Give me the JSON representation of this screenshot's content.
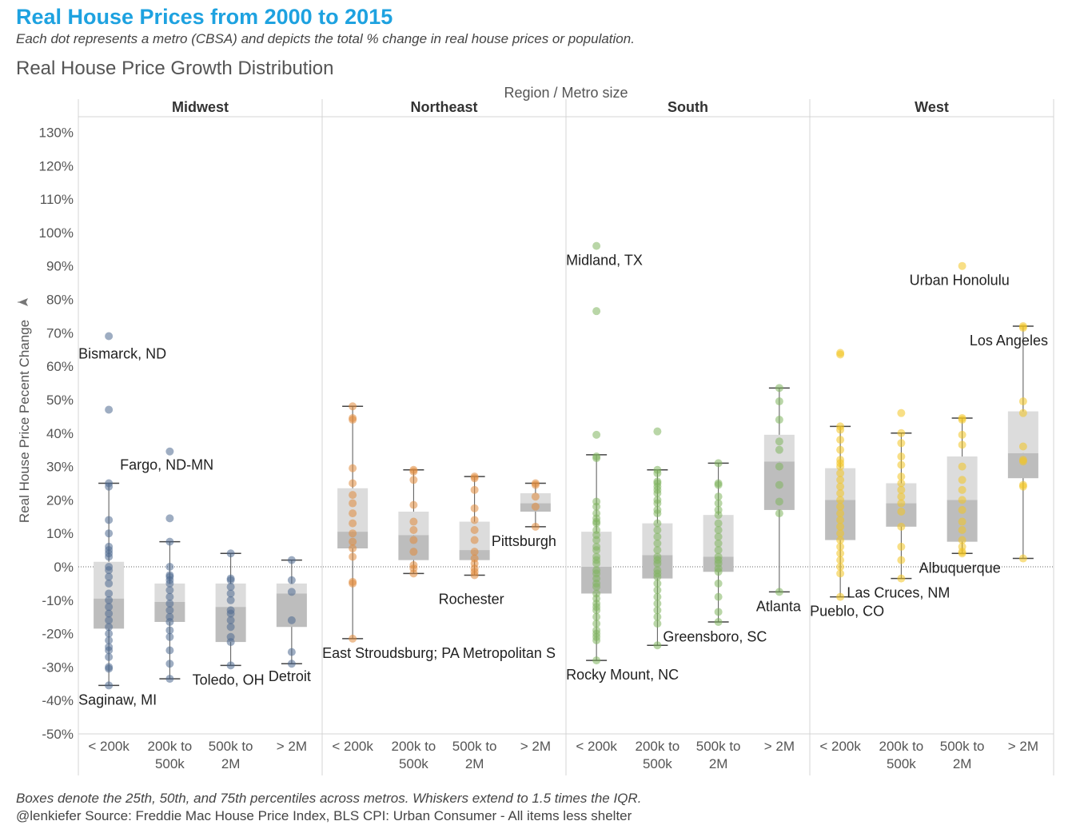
{
  "title": "Real House Prices from 2000 to 2015",
  "subtitle": "Each dot represents a metro (CBSA) and depicts the total % change in real house prices or population.",
  "sheet_title": "Real House Price Growth Distribution",
  "footer_note": "Boxes denote the 25th, 50th, and 75th percentiles across metros. Whiskers extend to 1.5 times the IQR.",
  "footer_source": "@lenkiefer Source: Freddie Mac House Price Index, BLS CPI: Urban Consumer - All items less shelter",
  "chart_data": {
    "type": "boxplot-with-points",
    "column_header": "Region  /  Metro size",
    "ylabel": "Real House Price Pecent Change",
    "ylim": [
      -52,
      133
    ],
    "yticks": [
      -50,
      -40,
      -30,
      -20,
      -10,
      0,
      10,
      20,
      30,
      40,
      50,
      60,
      70,
      80,
      90,
      100,
      110,
      120,
      130
    ],
    "y_tick_format": "{v}%",
    "reference_line": 0,
    "box_colors": {
      "q1_to_median": "#bdbdbd",
      "median_to_q3": "#dcdcdc"
    },
    "size_categories": [
      {
        "key": "lt200",
        "lines": [
          "< 200k"
        ]
      },
      {
        "key": "200to500",
        "lines": [
          "200k to",
          "500k"
        ]
      },
      {
        "key": "500to2m",
        "lines": [
          "500k to",
          "2M"
        ]
      },
      {
        "key": "gt2m",
        "lines": [
          "> 2M"
        ]
      }
    ],
    "regions": [
      {
        "name": "Midwest",
        "color": "#4e6a8f",
        "groups": [
          {
            "whisker_low": -35.5,
            "q1": -18.5,
            "median": -9.5,
            "q3": 1.5,
            "whisker_high": 25,
            "points": [
              69,
              47,
              25,
              24,
              14,
              10,
              6,
              5,
              4,
              3,
              0,
              -1,
              -3,
              -5,
              -8,
              -10,
              -12,
              -14,
              -16,
              -18,
              -20,
              -22,
              -24,
              -25,
              -27,
              -30,
              -30.5,
              -35.5
            ]
          },
          {
            "whisker_low": -33.5,
            "q1": -16.5,
            "median": -10.5,
            "q3": -5,
            "whisker_high": 7.5,
            "points": [
              34.5,
              14.5,
              7.5,
              0,
              -2.5,
              -3,
              -4,
              -5,
              -7,
              -9,
              -11,
              -13,
              -15,
              -16.5,
              -19,
              -21,
              -25,
              -29,
              -33.5
            ]
          },
          {
            "whisker_low": -29.5,
            "q1": -22.5,
            "median": -12,
            "q3": -5,
            "whisker_high": 4,
            "points": [
              4,
              -3.5,
              -4,
              -6,
              -8,
              -10,
              -13,
              -14,
              -16,
              -18,
              -21,
              -22.5,
              -29.5
            ]
          },
          {
            "whisker_low": -29,
            "q1": -18,
            "median": -8,
            "q3": -5,
            "whisker_high": 2,
            "points": [
              2,
              -4,
              -7.5,
              -16,
              -25.5,
              -29
            ]
          }
        ]
      },
      {
        "name": "Northeast",
        "color": "#e08a3c",
        "groups": [
          {
            "whisker_low": -21.5,
            "q1": 5.5,
            "median": 10.5,
            "q3": 23.5,
            "whisker_high": 48,
            "points": [
              48,
              44.5,
              44,
              29.5,
              25,
              21.5,
              19,
              16,
              13,
              10,
              7.5,
              5.5,
              3,
              -4.5,
              -5,
              -21.5
            ]
          },
          {
            "whisker_low": -2,
            "q1": 2,
            "median": 9.5,
            "q3": 16.5,
            "whisker_high": 29,
            "points": [
              29,
              28.5,
              26,
              18.5,
              13.5,
              11,
              8,
              4.5,
              0.5,
              -0.5,
              -2
            ]
          },
          {
            "whisker_low": -2.5,
            "q1": 2,
            "median": 5,
            "q3": 13.5,
            "whisker_high": 27,
            "points": [
              27,
              26.5,
              23,
              17.5,
              14,
              11,
              8,
              4.5,
              2.5,
              1,
              -0.5,
              -1.5,
              -2.5
            ]
          },
          {
            "whisker_low": 12,
            "q1": 16.5,
            "median": 19,
            "q3": 22,
            "whisker_high": 25,
            "points": [
              25,
              24.5,
              21,
              18,
              12
            ]
          }
        ]
      },
      {
        "name": "South",
        "color": "#7fb55e",
        "groups": [
          {
            "whisker_low": -28,
            "q1": -8,
            "median": 0,
            "q3": 10.5,
            "whisker_high": 33.5,
            "points": [
              96,
              76.5,
              39.5,
              33,
              32.5,
              19.5,
              18,
              16,
              14.5,
              13,
              13.5,
              11,
              9.5,
              8,
              6,
              5,
              3,
              2,
              1,
              -1,
              -2,
              -3.5,
              -5,
              -6,
              -8,
              -9.5,
              -11,
              -12,
              -13,
              -15,
              -17,
              -19,
              -20,
              -21,
              -22,
              -28
            ]
          },
          {
            "whisker_low": -23.5,
            "q1": -3.5,
            "median": 3.5,
            "q3": 13,
            "whisker_high": 29,
            "points": [
              40.5,
              29,
              28,
              25.5,
              25,
              24,
              23,
              22,
              20,
              19,
              17,
              16,
              13,
              11,
              9,
              7,
              5,
              3,
              2,
              1,
              -1,
              -2,
              -3,
              -5,
              -7,
              -9,
              -11,
              -13,
              -15,
              -17,
              -23.5
            ]
          },
          {
            "whisker_low": -16.5,
            "q1": -1.5,
            "median": 3,
            "q3": 15.5,
            "whisker_high": 31,
            "points": [
              31,
              25,
              24.5,
              21,
              19,
              17,
              15.5,
              13,
              11,
              9,
              7,
              5,
              3,
              2,
              1,
              -0.5,
              -1.5,
              -5,
              -9,
              -13.5,
              -16.5
            ]
          },
          {
            "whisker_low": -7.5,
            "q1": 17,
            "median": 31.5,
            "q3": 39.5,
            "whisker_high": 53.5,
            "points": [
              53.5,
              49.5,
              44,
              37.5,
              35,
              30,
              24.5,
              19.5,
              16,
              -7.5
            ]
          }
        ]
      },
      {
        "name": "West",
        "color": "#f2c523",
        "groups": [
          {
            "whisker_low": -9,
            "q1": 8,
            "median": 20,
            "q3": 29.5,
            "whisker_high": 42,
            "points": [
              64,
              63.5,
              42,
              41,
              38,
              35,
              32,
              31,
              30,
              28,
              26,
              24,
              22,
              20,
              18,
              16,
              14,
              12,
              10,
              8,
              6,
              4,
              2,
              0,
              -2,
              -9
            ]
          },
          {
            "whisker_low": -3.5,
            "q1": 12,
            "median": 19,
            "q3": 25,
            "whisker_high": 40,
            "points": [
              46,
              40,
              37,
              33,
              30.5,
              27,
              25,
              23,
              21,
              19,
              16.5,
              12,
              6,
              2,
              -3.5
            ]
          },
          {
            "whisker_low": 4,
            "q1": 7.5,
            "median": 20,
            "q3": 33,
            "whisker_high": 44.5,
            "points": [
              90,
              44.5,
              44,
              39.5,
              36.5,
              30,
              26,
              23,
              20,
              17,
              13.5,
              11,
              8,
              6,
              4.5,
              4
            ]
          },
          {
            "whisker_low": 2.5,
            "q1": 26.5,
            "median": 34,
            "q3": 46.5,
            "whisker_high": 72,
            "points": [
              72,
              71.5,
              49.5,
              46,
              36,
              32,
              31.5,
              24.5,
              24,
              2.5
            ]
          }
        ]
      }
    ],
    "annotations": [
      {
        "text": "Bismarck, ND",
        "region": 0,
        "group": 0,
        "y": 69,
        "dx": -38,
        "dy": 28
      },
      {
        "text": "Fargo, ND-MN",
        "region": 0,
        "group": 0,
        "y": 47,
        "dx": 14,
        "dy": 75
      },
      {
        "text": "Saginaw, MI",
        "region": 0,
        "group": 0,
        "y": -35.5,
        "dx": -38,
        "dy": 24
      },
      {
        "text": "Toledo, OH",
        "region": 0,
        "group": 2,
        "y": -29.5,
        "dx": -48,
        "dy": 24
      },
      {
        "text": "Detroit",
        "region": 0,
        "group": 3,
        "y": -29,
        "dx": -29,
        "dy": 22
      },
      {
        "text": "East Stroudsburg; PA Metropolitan S",
        "region": 1,
        "group": 0,
        "y": -21.5,
        "dx": -38,
        "dy": 24
      },
      {
        "text": "Rochester",
        "region": 1,
        "group": 2,
        "y": -2.5,
        "dx": -45,
        "dy": 36
      },
      {
        "text": "Pittsburgh",
        "region": 1,
        "group": 3,
        "y": 12,
        "dx": -55,
        "dy": 24
      },
      {
        "text": "Midland, TX",
        "region": 2,
        "group": 0,
        "y": 96,
        "dx": -38,
        "dy": 24
      },
      {
        "text": "Rocky Mount, NC",
        "region": 2,
        "group": 0,
        "y": -28,
        "dx": -38,
        "dy": 24
      },
      {
        "text": "Greensboro, SC",
        "region": 2,
        "group": 1,
        "y": -23.5,
        "dx": 7,
        "dy": -5
      },
      {
        "text": "Atlanta",
        "region": 2,
        "group": 3,
        "y": -7.5,
        "dx": -29,
        "dy": 24
      },
      {
        "text": "Urban Honolulu",
        "region": 3,
        "group": 2,
        "y": 90,
        "dx": -66,
        "dy": 24
      },
      {
        "text": "Los Angeles",
        "region": 3,
        "group": 3,
        "y": 72,
        "dx": -67,
        "dy": 24
      },
      {
        "text": "Albuquerque",
        "region": 3,
        "group": 2,
        "y": 4,
        "dx": -54,
        "dy": 24
      },
      {
        "text": "Las Cruces, NM",
        "region": 3,
        "group": 1,
        "y": -3.5,
        "dx": -68,
        "dy": 24
      },
      {
        "text": "Pueblo, CO",
        "region": 3,
        "group": 0,
        "y": -9,
        "dx": -38,
        "dy": 24
      }
    ]
  }
}
